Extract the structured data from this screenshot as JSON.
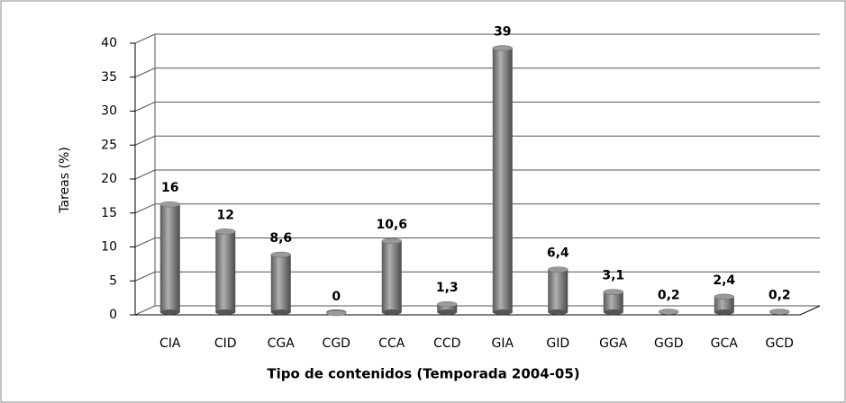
{
  "chart_data": {
    "type": "bar",
    "categories": [
      "CIA",
      "CID",
      "CGA",
      "CGD",
      "CCA",
      "CCD",
      "GIA",
      "GID",
      "GGA",
      "GGD",
      "GCA",
      "GCD"
    ],
    "values": [
      16,
      12,
      8.6,
      0,
      10.6,
      1.3,
      39,
      6.4,
      3.1,
      0.2,
      2.4,
      0.2
    ],
    "value_labels": [
      "16",
      "12",
      "8,6",
      "0",
      "10,6",
      "1,3",
      "39",
      "6,4",
      "3,1",
      "0,2",
      "2,4",
      "0,2"
    ],
    "color": "#808080",
    "y_label": "Tareas (%)",
    "x_label": "Tipo de contenidos (Temporada 2004-05)",
    "ylim": [
      0,
      40
    ],
    "yticks": [
      0,
      5,
      10,
      15,
      20,
      25,
      30,
      35,
      40
    ],
    "grid": true
  }
}
